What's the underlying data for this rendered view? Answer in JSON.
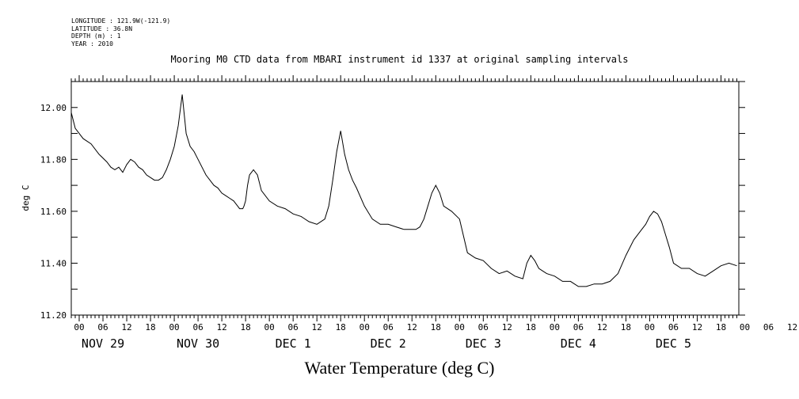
{
  "header": {
    "metadata_lines": [
      "LONGITUDE : 121.9W(-121.9)",
      "LATITUDE : 36.8N",
      "DEPTH (m) : 1",
      "YEAR : 2010"
    ]
  },
  "chart_data": {
    "type": "line",
    "title": "Mooring M0 CTD data from MBARI instrument id 1337 at original sampling intervals",
    "xlabel": "Water Temperature (deg C)",
    "ylabel": "deg C",
    "ylim": [
      11.2,
      12.1
    ],
    "y_ticks": [
      "11.20",
      "11.40",
      "11.60",
      "11.80",
      "12.00"
    ],
    "x_range_hours": [
      -20,
      148.5
    ],
    "x_hour_ticks": [
      "00",
      "06",
      "12",
      "18",
      "00",
      "06",
      "12",
      "18",
      "00",
      "06",
      "12",
      "18",
      "00",
      "06",
      "12",
      "18",
      "00",
      "06",
      "12",
      "18",
      "00",
      "06",
      "12",
      "18",
      "00",
      "06",
      "12",
      "18",
      "00",
      "06",
      "12",
      "18"
    ],
    "x_day_labels": [
      "NOV 29",
      "NOV 30",
      "DEC  1",
      "DEC  2",
      "DEC  3",
      "DEC  4",
      "DEC  5"
    ],
    "grid": false,
    "series": [
      {
        "x_hours_from_nov29_00": [
          -20,
          -19,
          -17,
          -15,
          -13,
          -11,
          -10,
          -9,
          -8,
          -7,
          -6,
          -5,
          -4,
          -3,
          -2,
          -1,
          0,
          1,
          2,
          3,
          4,
          5,
          6,
          7,
          8,
          9,
          10,
          11,
          12,
          13,
          14,
          16,
          17,
          18,
          19,
          20,
          21,
          22,
          22.5,
          23,
          23.3,
          23.6,
          24,
          24.5,
          25,
          26,
          27,
          28,
          30,
          32,
          34,
          36,
          38,
          40,
          42,
          44,
          45,
          46,
          47,
          48,
          49,
          50,
          51,
          52,
          54,
          56,
          58,
          60,
          62,
          64,
          66,
          67,
          68,
          69,
          70,
          71,
          72,
          73,
          74,
          76,
          78,
          80,
          82,
          84,
          86,
          88,
          90,
          92,
          94,
          95,
          96,
          97,
          98,
          99,
          100,
          102,
          104,
          106,
          108,
          110,
          112,
          114,
          116,
          118,
          120,
          122,
          124,
          125,
          126,
          127,
          128,
          129,
          130,
          131,
          132,
          134,
          136,
          138,
          140,
          142,
          144,
          146,
          148
        ],
        "values": [
          11.98,
          11.92,
          11.88,
          11.86,
          11.82,
          11.79,
          11.77,
          11.76,
          11.77,
          11.75,
          11.78,
          11.8,
          11.79,
          11.77,
          11.76,
          11.74,
          11.73,
          11.72,
          11.72,
          11.73,
          11.76,
          11.8,
          11.85,
          11.93,
          12.05,
          11.9,
          11.85,
          11.83,
          11.8,
          11.77,
          11.74,
          11.7,
          11.69,
          11.67,
          11.66,
          11.65,
          11.64,
          11.62,
          11.61,
          11.61,
          11.61,
          11.62,
          11.64,
          11.7,
          11.74,
          11.76,
          11.74,
          11.68,
          11.64,
          11.62,
          11.61,
          11.59,
          11.58,
          11.56,
          11.55,
          11.57,
          11.62,
          11.72,
          11.83,
          11.91,
          11.82,
          11.76,
          11.72,
          11.69,
          11.62,
          11.57,
          11.55,
          11.55,
          11.54,
          11.53,
          11.53,
          11.53,
          11.54,
          11.57,
          11.62,
          11.67,
          11.7,
          11.67,
          11.62,
          11.6,
          11.57,
          11.44,
          11.42,
          11.41,
          11.38,
          11.36,
          11.37,
          11.35,
          11.34,
          11.4,
          11.43,
          11.41,
          11.38,
          11.37,
          11.36,
          11.35,
          11.33,
          11.33,
          11.31,
          11.31,
          11.32,
          11.32,
          11.33,
          11.36,
          11.43,
          11.49,
          11.53,
          11.55,
          11.58,
          11.6,
          11.59,
          11.56,
          11.51,
          11.46,
          11.4,
          11.38,
          11.38,
          11.36,
          11.35,
          11.37,
          11.39,
          11.4,
          11.39
        ]
      }
    ]
  }
}
